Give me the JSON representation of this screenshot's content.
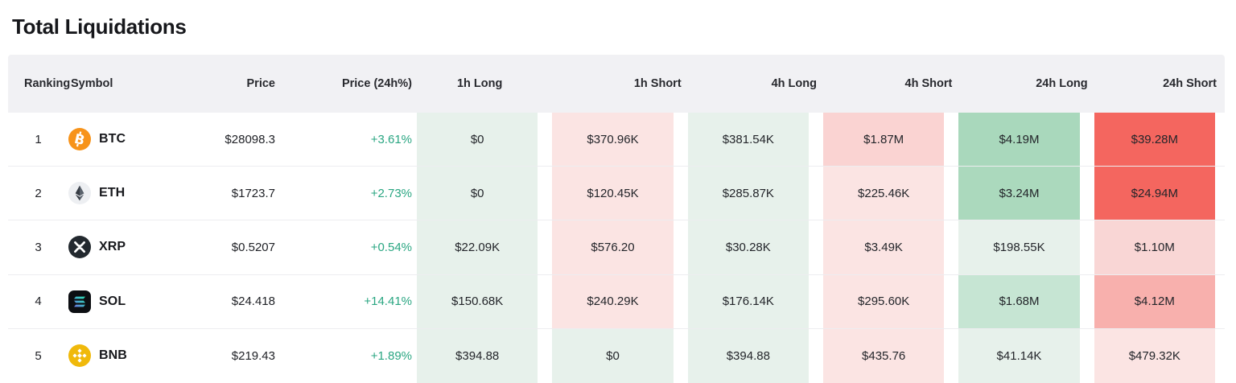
{
  "page": {
    "title": "Total Liquidations"
  },
  "colors": {
    "positive_change": "#2aa682",
    "header_bg": "#f1f1f4",
    "pale_green": "#e7f1eb",
    "pale_pink": "#fbe4e3",
    "mid_pink": "#fad3d2",
    "mid_green": "#a9d8bc",
    "strong_red": "#f4665f",
    "salmon": "#f8b0ad",
    "light_mid_green": "#c6e5d3",
    "deeper_pale_pink": "#f9d6d5",
    "btc_brand": "#f7931a",
    "bnb_brand": "#f0b90b",
    "xrp_brand": "#23292f"
  },
  "table": {
    "columns": [
      {
        "label": "Ranking"
      },
      {
        "label": "Symbol"
      },
      {
        "label": "Price"
      },
      {
        "label": "Price (24h%)"
      },
      {
        "label": "1h Long"
      },
      {
        "label": "1h Short"
      },
      {
        "label": "4h Long"
      },
      {
        "label": "4h Short"
      },
      {
        "label": "24h Long"
      },
      {
        "label": "24h Short"
      }
    ],
    "rows": [
      {
        "ranking": "1",
        "symbol": "BTC",
        "icon": "btc-icon",
        "price": "$28098.3",
        "change": "+3.61%",
        "values": [
          {
            "text": "$0",
            "bg": "#e7f1eb"
          },
          {
            "text": "$370.96K",
            "bg": "#fbe4e3"
          },
          {
            "text": "$381.54K",
            "bg": "#e7f1eb"
          },
          {
            "text": "$1.87M",
            "bg": "#fad3d2"
          },
          {
            "text": "$4.19M",
            "bg": "#a9d8bc"
          },
          {
            "text": "$39.28M",
            "bg": "#f4665f"
          }
        ]
      },
      {
        "ranking": "2",
        "symbol": "ETH",
        "icon": "eth-icon",
        "price": "$1723.7",
        "change": "+2.73%",
        "values": [
          {
            "text": "$0",
            "bg": "#e7f1eb"
          },
          {
            "text": "$120.45K",
            "bg": "#fbe4e3"
          },
          {
            "text": "$285.87K",
            "bg": "#e7f1eb"
          },
          {
            "text": "$225.46K",
            "bg": "#fbe4e3"
          },
          {
            "text": "$3.24M",
            "bg": "#abd9bd"
          },
          {
            "text": "$24.94M",
            "bg": "#f4665f"
          }
        ]
      },
      {
        "ranking": "3",
        "symbol": "XRP",
        "icon": "xrp-icon",
        "price": "$0.5207",
        "change": "+0.54%",
        "values": [
          {
            "text": "$22.09K",
            "bg": "#e7f1eb"
          },
          {
            "text": "$576.20",
            "bg": "#fbe4e3"
          },
          {
            "text": "$30.28K",
            "bg": "#e7f1eb"
          },
          {
            "text": "$3.49K",
            "bg": "#fbe4e3"
          },
          {
            "text": "$198.55K",
            "bg": "#e7f1eb"
          },
          {
            "text": "$1.10M",
            "bg": "#f9d6d5"
          }
        ]
      },
      {
        "ranking": "4",
        "symbol": "SOL",
        "icon": "sol-icon",
        "price": "$24.418",
        "change": "+14.41%",
        "values": [
          {
            "text": "$150.68K",
            "bg": "#e7f1eb"
          },
          {
            "text": "$240.29K",
            "bg": "#fbe4e3"
          },
          {
            "text": "$176.14K",
            "bg": "#e7f1eb"
          },
          {
            "text": "$295.60K",
            "bg": "#fbe4e3"
          },
          {
            "text": "$1.68M",
            "bg": "#c6e5d3"
          },
          {
            "text": "$4.12M",
            "bg": "#f8b0ad"
          }
        ]
      },
      {
        "ranking": "5",
        "symbol": "BNB",
        "icon": "bnb-icon",
        "price": "$219.43",
        "change": "+1.89%",
        "values": [
          {
            "text": "$394.88",
            "bg": "#e7f1eb"
          },
          {
            "text": "$0",
            "bg": "#e7f1eb"
          },
          {
            "text": "$394.88",
            "bg": "#e7f1eb"
          },
          {
            "text": "$435.76",
            "bg": "#fbe4e3"
          },
          {
            "text": "$41.14K",
            "bg": "#e7f1eb"
          },
          {
            "text": "$479.32K",
            "bg": "#fbe4e3"
          }
        ]
      }
    ]
  }
}
